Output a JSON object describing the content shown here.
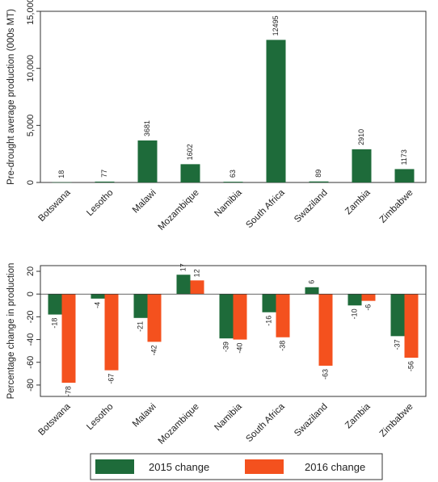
{
  "chart_data": [
    {
      "type": "bar",
      "categories": [
        "Botswana",
        "Lesotho",
        "Malawi",
        "Mozambique",
        "Namibia",
        "South Africa",
        "Swaziland",
        "Zambia",
        "Zimbabwe"
      ],
      "values": [
        18,
        77,
        3681,
        1602,
        63,
        12495,
        89,
        2910,
        1173
      ],
      "value_labels": [
        "18",
        "77",
        "3681",
        "1602",
        "63",
        "12495",
        "89",
        "2910",
        "1173"
      ],
      "title": "",
      "xlabel": "",
      "ylabel": "Pre-drought average production (000s MT)",
      "ylim": [
        0,
        15000
      ],
      "yticks": [
        0,
        5000,
        10000,
        15000
      ],
      "ytick_labels": [
        "0",
        "5,000",
        "10,000",
        "15,000"
      ],
      "color": "#1e6b3a",
      "grid": false,
      "legend": false
    },
    {
      "type": "bar",
      "categories": [
        "Botswana",
        "Lesotho",
        "Malawi",
        "Mozambique",
        "Namibia",
        "South Africa",
        "Swaziland",
        "Zambia",
        "Zimbabwe"
      ],
      "series": [
        {
          "name": "2015 change",
          "color": "#1e6b3a",
          "values": [
            -18,
            -4,
            -21,
            17,
            -39,
            -16,
            6,
            -10,
            -37
          ]
        },
        {
          "name": "2016 change",
          "color": "#f4511e",
          "values": [
            -78,
            -67,
            -42,
            12,
            -40,
            -38,
            -63,
            -6,
            -56
          ]
        }
      ],
      "title": "",
      "xlabel": "",
      "ylabel": "Percentage change in production",
      "ylim": [
        -90,
        25
      ],
      "yticks": [
        -80,
        -60,
        -40,
        -20,
        0,
        20
      ],
      "ytick_labels": [
        "-80",
        "-60",
        "-40",
        "-20",
        "0",
        "20"
      ],
      "grid": false,
      "legend": "bottom-center"
    }
  ]
}
